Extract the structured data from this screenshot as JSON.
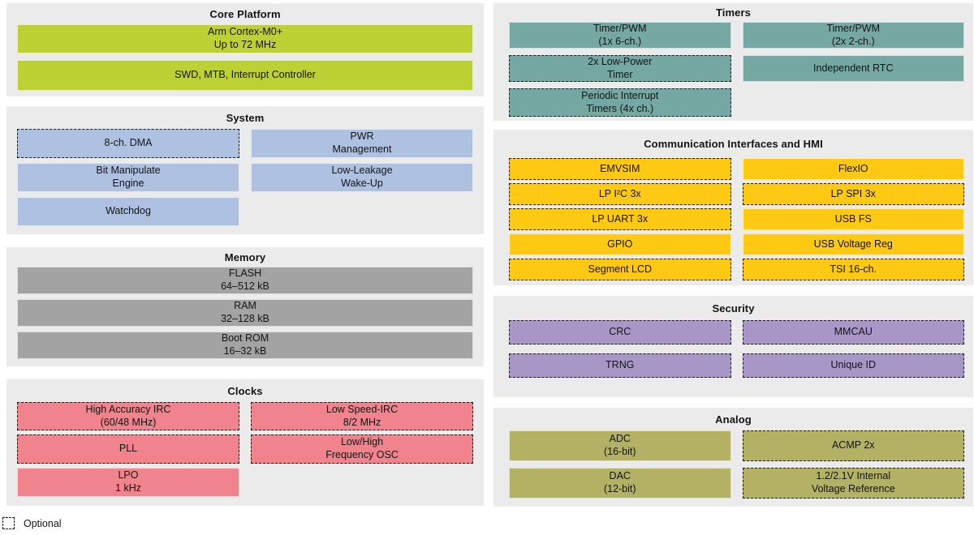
{
  "sections": {
    "core_platform": {
      "title": "Core Platform",
      "blocks": [
        {
          "label": "Arm Cortex-M0+\nUp to 72 MHz",
          "optional": false
        },
        {
          "label": "SWD, MTB, Interrupt Controller",
          "optional": false
        }
      ]
    },
    "system": {
      "title": "System",
      "blocks": [
        {
          "label": "8-ch. DMA",
          "optional": true
        },
        {
          "label": "PWR\nManagement",
          "optional": false
        },
        {
          "label": "Bit Manipulate\nEngine",
          "optional": false
        },
        {
          "label": "Low-Leakage\nWake-Up",
          "optional": false
        },
        {
          "label": "Watchdog",
          "optional": false
        }
      ]
    },
    "memory": {
      "title": "Memory",
      "blocks": [
        {
          "label": "FLASH\n64–512 kB",
          "optional": false
        },
        {
          "label": "RAM\n32–128 kB",
          "optional": false
        },
        {
          "label": "Boot ROM\n16–32 kB",
          "optional": false
        }
      ]
    },
    "clocks": {
      "title": "Clocks",
      "blocks": [
        {
          "label": "High Accuracy IRC\n(60/48 MHz)",
          "optional": true
        },
        {
          "label": "Low Speed-IRC\n8/2 MHz",
          "optional": true
        },
        {
          "label": "PLL",
          "optional": true
        },
        {
          "label": "Low/High\nFrequency OSC",
          "optional": true
        },
        {
          "label": "LPO\n1 kHz",
          "optional": false
        }
      ]
    },
    "timers": {
      "title": "Timers",
      "blocks": [
        {
          "label": "Timer/PWM\n(1x 6-ch.)",
          "optional": false
        },
        {
          "label": "Timer/PWM\n(2x 2-ch.)",
          "optional": false
        },
        {
          "label": "2x Low-Power\nTimer",
          "optional": true
        },
        {
          "label": "Independent RTC",
          "optional": false
        },
        {
          "label": "Periodic Interrupt\nTimers (4x ch.)",
          "optional": true
        }
      ]
    },
    "comm": {
      "title": "Communication Interfaces and HMI",
      "blocks": [
        {
          "label": "EMVSIM",
          "optional": true
        },
        {
          "label": "FlexIO",
          "optional": false
        },
        {
          "label": "LP I²C 3x",
          "optional": true
        },
        {
          "label": "LP SPI 3x",
          "optional": true
        },
        {
          "label": "LP UART 3x",
          "optional": true
        },
        {
          "label": "USB FS",
          "optional": false
        },
        {
          "label": "GPIO",
          "optional": false
        },
        {
          "label": "USB Voltage Reg",
          "optional": false
        },
        {
          "label": "Segment LCD",
          "optional": true
        },
        {
          "label": "TSI 16-ch.",
          "optional": true
        }
      ]
    },
    "security": {
      "title": "Security",
      "blocks": [
        {
          "label": "CRC",
          "optional": true
        },
        {
          "label": "MMCAU",
          "optional": true
        },
        {
          "label": "TRNG",
          "optional": true
        },
        {
          "label": "Unique ID",
          "optional": true
        }
      ]
    },
    "analog": {
      "title": "Analog",
      "blocks": [
        {
          "label": "ADC\n(16-bit)",
          "optional": false
        },
        {
          "label": "ACMP 2x",
          "optional": true
        },
        {
          "label": "DAC\n(12-bit)",
          "optional": false
        },
        {
          "label": "1.2/2.1V Internal\nVoltage Reference",
          "optional": true
        }
      ]
    }
  },
  "legend": {
    "label": "Optional"
  },
  "colors": {
    "core_platform": "#bcd234",
    "system": "#aec1e0",
    "memory": "#a3a3a3",
    "clocks": "#f0838c",
    "timers": "#75a8a2",
    "comm": "#fdc913",
    "security": "#a897c6",
    "analog": "#b3b164",
    "section_background": "#ebebec"
  }
}
